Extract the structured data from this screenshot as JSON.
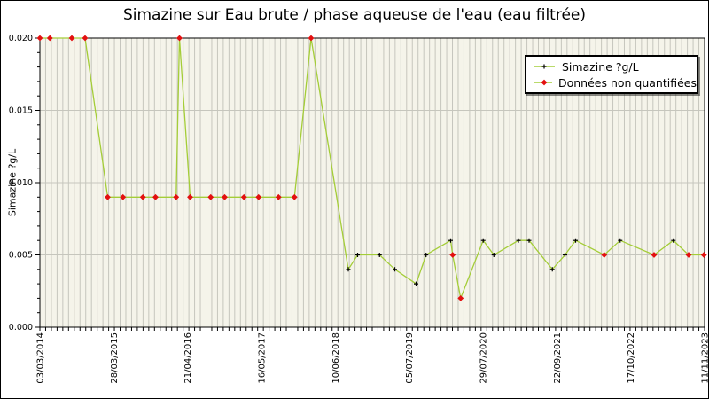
{
  "title": "Simazine sur Eau brute / phase aqueuse de l'eau (eau filtrée)",
  "y_axis": {
    "label": "Simazine ?g/L",
    "tick_labels": [
      "0.000",
      "0.005",
      "0.010",
      "0.015",
      "0.020"
    ],
    "min": 0,
    "max": 0.02,
    "major_step": 0.005,
    "minor_step": 0.001
  },
  "x_axis": {
    "tick_labels": [
      "03/03/2014",
      "28/03/2015",
      "21/04/2016",
      "16/05/2017",
      "10/06/2018",
      "05/07/2019",
      "29/07/2020",
      "22/09/2021",
      "17/10/2022",
      "11/11/2023"
    ],
    "minor_gridline_intervals": 116
  },
  "legend": {
    "items": [
      {
        "label": "Simazine ?g/L",
        "marker": "black-plus"
      },
      {
        "label": "Données non quantifiées",
        "marker": "red-diamond"
      }
    ]
  },
  "colors": {
    "line": "#a4cd38",
    "quantified_marker": "#000000",
    "non_quantified_marker": "#e31010",
    "plot_bg": "#f5f4ea",
    "grid": "#c6c6bd",
    "axis": "#000000",
    "page_bg": "#ffffff"
  },
  "chart_data": {
    "type": "line",
    "title": "Simazine sur Eau brute / phase aqueuse de l'eau (eau filtrée)",
    "xlabel": "",
    "ylabel": "Simazine ?g/L",
    "ylim": [
      0,
      0.02
    ],
    "grid": true,
    "legend_position": "top-right",
    "x_tick_labels": [
      "03/03/2014",
      "28/03/2015",
      "21/04/2016",
      "16/05/2017",
      "10/06/2018",
      "05/07/2019",
      "29/07/2020",
      "22/09/2021",
      "17/10/2022",
      "11/11/2023"
    ],
    "x_unit": "fraction of time axis (03/03/2014 → 11/11/2023)",
    "series": [
      {
        "name": "Simazine ?g/L",
        "color": "#a4cd38",
        "points": [
          {
            "x": 0.0,
            "v": 0.02,
            "nq": true
          },
          {
            "x": 0.015,
            "v": 0.02,
            "nq": true
          },
          {
            "x": 0.048,
            "v": 0.02,
            "nq": true
          },
          {
            "x": 0.068,
            "v": 0.02,
            "nq": true
          },
          {
            "x": 0.102,
            "v": 0.009,
            "nq": true
          },
          {
            "x": 0.125,
            "v": 0.009,
            "nq": true
          },
          {
            "x": 0.155,
            "v": 0.009,
            "nq": true
          },
          {
            "x": 0.174,
            "v": 0.009,
            "nq": true
          },
          {
            "x": 0.205,
            "v": 0.009,
            "nq": true
          },
          {
            "x": 0.21,
            "v": 0.02,
            "nq": true
          },
          {
            "x": 0.226,
            "v": 0.009,
            "nq": true
          },
          {
            "x": 0.257,
            "v": 0.009,
            "nq": true
          },
          {
            "x": 0.278,
            "v": 0.009,
            "nq": true
          },
          {
            "x": 0.307,
            "v": 0.009,
            "nq": true
          },
          {
            "x": 0.329,
            "v": 0.009,
            "nq": true
          },
          {
            "x": 0.359,
            "v": 0.009,
            "nq": true
          },
          {
            "x": 0.383,
            "v": 0.009,
            "nq": true
          },
          {
            "x": 0.408,
            "v": 0.02,
            "nq": true
          },
          {
            "x": 0.464,
            "v": 0.004,
            "nq": false
          },
          {
            "x": 0.478,
            "v": 0.005,
            "nq": false
          },
          {
            "x": 0.511,
            "v": 0.005,
            "nq": false
          },
          {
            "x": 0.534,
            "v": 0.004,
            "nq": false
          },
          {
            "x": 0.566,
            "v": 0.003,
            "nq": false
          },
          {
            "x": 0.581,
            "v": 0.005,
            "nq": false
          },
          {
            "x": 0.618,
            "v": 0.006,
            "nq": false
          },
          {
            "x": 0.621,
            "v": 0.005,
            "nq": true
          },
          {
            "x": 0.633,
            "v": 0.002,
            "nq": true
          },
          {
            "x": 0.667,
            "v": 0.006,
            "nq": false
          },
          {
            "x": 0.683,
            "v": 0.005,
            "nq": false
          },
          {
            "x": 0.72,
            "v": 0.006,
            "nq": false
          },
          {
            "x": 0.736,
            "v": 0.006,
            "nq": false
          },
          {
            "x": 0.771,
            "v": 0.004,
            "nq": false
          },
          {
            "x": 0.79,
            "v": 0.005,
            "nq": false
          },
          {
            "x": 0.806,
            "v": 0.006,
            "nq": false
          },
          {
            "x": 0.849,
            "v": 0.005,
            "nq": true
          },
          {
            "x": 0.873,
            "v": 0.006,
            "nq": false
          },
          {
            "x": 0.924,
            "v": 0.005,
            "nq": true
          },
          {
            "x": 0.953,
            "v": 0.006,
            "nq": false
          },
          {
            "x": 0.976,
            "v": 0.005,
            "nq": true
          },
          {
            "x": 0.999,
            "v": 0.005,
            "nq": true
          }
        ]
      }
    ]
  }
}
